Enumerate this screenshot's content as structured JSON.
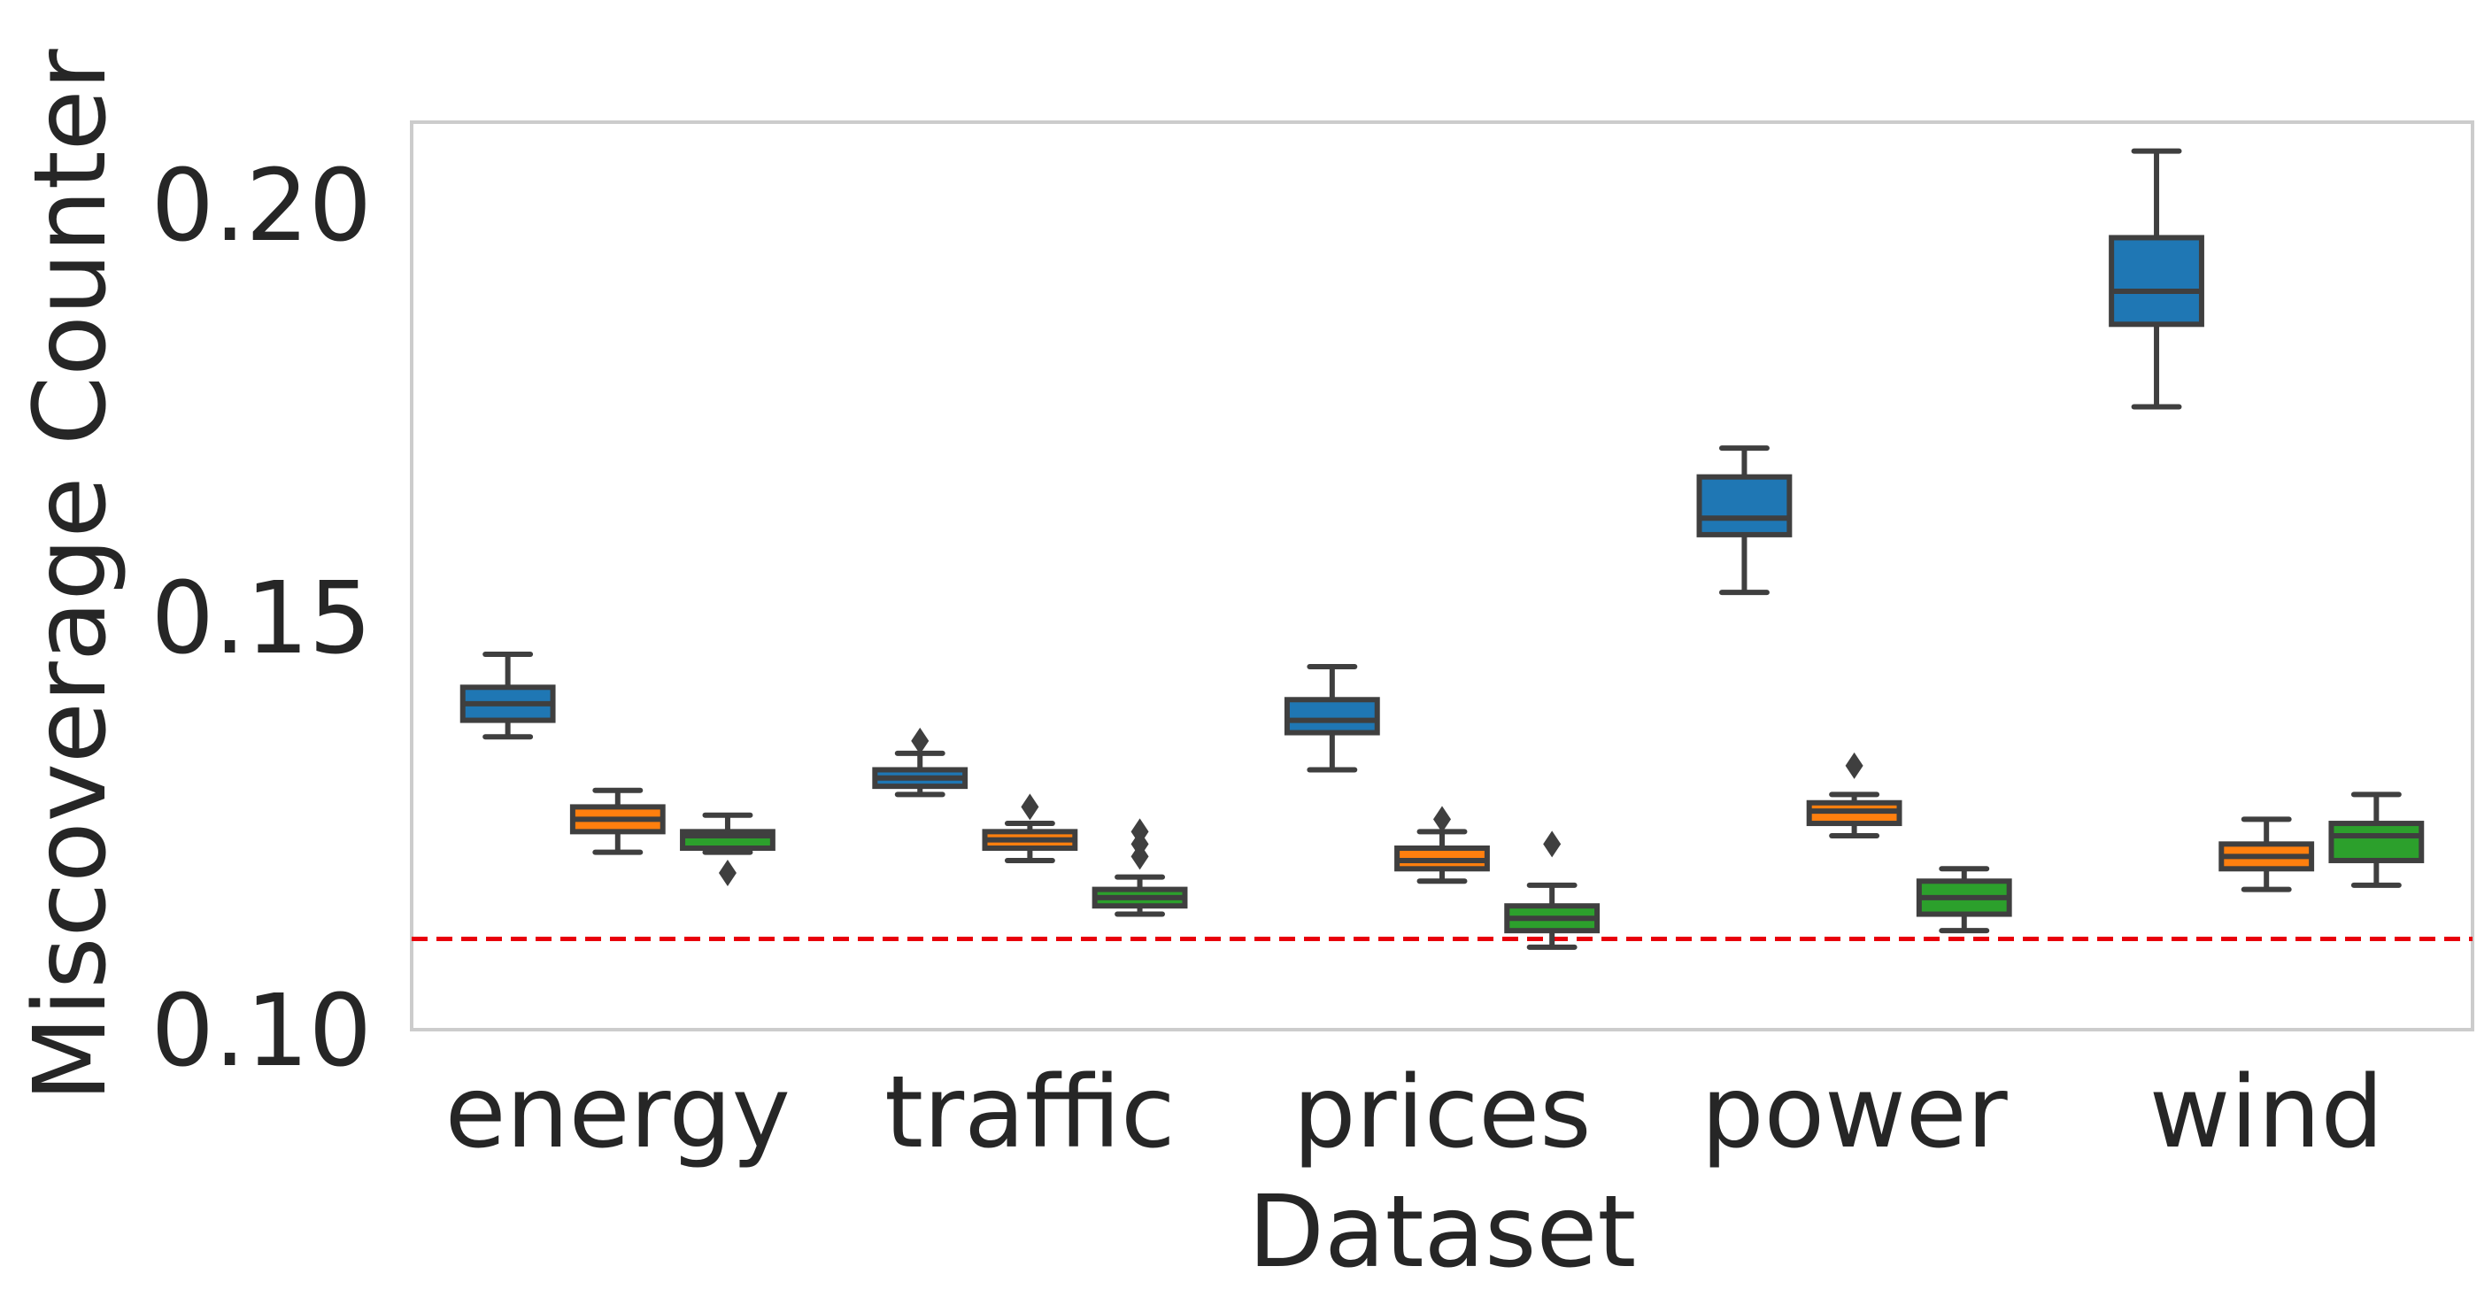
{
  "chart_data": {
    "type": "box",
    "title": "",
    "xlabel": "Dataset",
    "ylabel": "Miscoverage Counter",
    "ylim": [
      0.1,
      0.21
    ],
    "yticks": [
      0.1,
      0.15,
      0.2
    ],
    "ytick_labels": [
      "0.10",
      "0.15",
      "0.20"
    ],
    "categories": [
      "energy",
      "traffic",
      "prices",
      "power",
      "wind"
    ],
    "reference_line": {
      "y": 0.111,
      "color": "#e8000b",
      "style": "dashed"
    },
    "grid": false,
    "legend": "none",
    "series": [
      {
        "color": "#1f77b4",
        "boxes": [
          {
            "category": "energy",
            "whisker_low": 0.1355,
            "q1": 0.1375,
            "median": 0.1395,
            "q3": 0.1415,
            "whisker_high": 0.1455,
            "outliers": []
          },
          {
            "category": "traffic",
            "whisker_low": 0.1285,
            "q1": 0.1295,
            "median": 0.1305,
            "q3": 0.1315,
            "whisker_high": 0.1335,
            "outliers": [
              0.135
            ]
          },
          {
            "category": "prices",
            "whisker_low": 0.1315,
            "q1": 0.136,
            "median": 0.1375,
            "q3": 0.14,
            "whisker_high": 0.144,
            "outliers": []
          },
          {
            "category": "power",
            "whisker_low": 0.153,
            "q1": 0.16,
            "median": 0.162,
            "q3": 0.167,
            "whisker_high": 0.1705,
            "outliers": []
          },
          {
            "category": "wind",
            "whisker_low": 0.1755,
            "q1": 0.1855,
            "median": 0.1895,
            "q3": 0.196,
            "whisker_high": 0.2065,
            "outliers": []
          }
        ]
      },
      {
        "color": "#ff7f0e",
        "boxes": [
          {
            "category": "energy",
            "whisker_low": 0.1215,
            "q1": 0.124,
            "median": 0.1255,
            "q3": 0.127,
            "whisker_high": 0.129,
            "outliers": []
          },
          {
            "category": "traffic",
            "whisker_low": 0.1205,
            "q1": 0.122,
            "median": 0.123,
            "q3": 0.124,
            "whisker_high": 0.125,
            "outliers": [
              0.127
            ]
          },
          {
            "category": "prices",
            "whisker_low": 0.118,
            "q1": 0.1195,
            "median": 0.1205,
            "q3": 0.122,
            "whisker_high": 0.124,
            "outliers": [
              0.1255
            ]
          },
          {
            "category": "power",
            "whisker_low": 0.1235,
            "q1": 0.125,
            "median": 0.1265,
            "q3": 0.1275,
            "whisker_high": 0.1285,
            "outliers": [
              0.132
            ]
          },
          {
            "category": "wind",
            "whisker_low": 0.117,
            "q1": 0.1195,
            "median": 0.121,
            "q3": 0.1225,
            "whisker_high": 0.1255,
            "outliers": []
          }
        ]
      },
      {
        "color": "#2ca02c",
        "boxes": [
          {
            "category": "energy",
            "whisker_low": 0.1215,
            "q1": 0.122,
            "median": 0.1235,
            "q3": 0.124,
            "whisker_high": 0.126,
            "outliers": [
              0.119
            ]
          },
          {
            "category": "traffic",
            "whisker_low": 0.114,
            "q1": 0.115,
            "median": 0.116,
            "q3": 0.117,
            "whisker_high": 0.1185,
            "outliers": [
              0.121,
              0.1225,
              0.124
            ]
          },
          {
            "category": "prices",
            "whisker_low": 0.11,
            "q1": 0.112,
            "median": 0.1135,
            "q3": 0.115,
            "whisker_high": 0.1175,
            "outliers": [
              0.1225
            ]
          },
          {
            "category": "power",
            "whisker_low": 0.112,
            "q1": 0.114,
            "median": 0.116,
            "q3": 0.118,
            "whisker_high": 0.1195,
            "outliers": []
          },
          {
            "category": "wind",
            "whisker_low": 0.1175,
            "q1": 0.1205,
            "median": 0.1235,
            "q3": 0.125,
            "whisker_high": 0.1285,
            "outliers": []
          }
        ]
      }
    ]
  }
}
